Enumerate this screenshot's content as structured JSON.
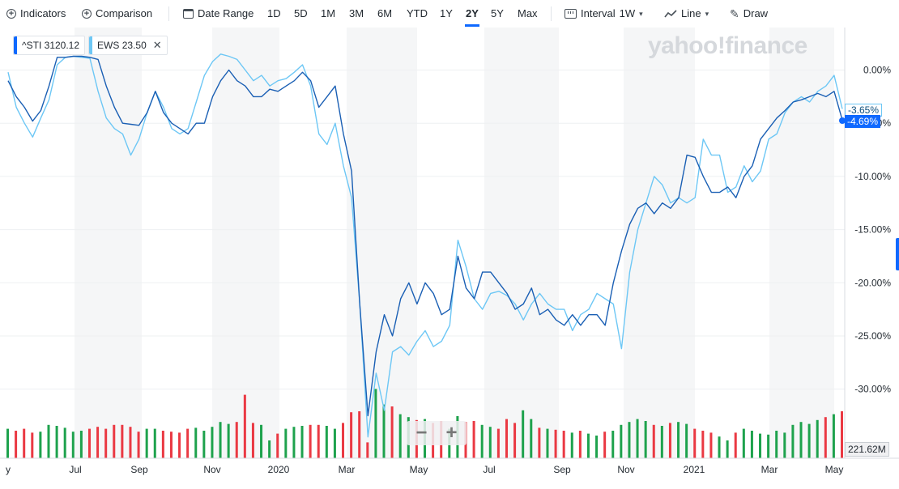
{
  "toolbar": {
    "indicators_label": "Indicators",
    "comparison_label": "Comparison",
    "date_range_label": "Date Range",
    "ranges": [
      "1D",
      "5D",
      "1M",
      "3M",
      "6M",
      "YTD",
      "1Y",
      "2Y",
      "5Y",
      "Max"
    ],
    "active_range": "2Y",
    "interval_label": "Interval",
    "interval_value": "1W",
    "chart_type_label": "Line",
    "draw_label": "Draw"
  },
  "legend": [
    {
      "symbol": "^STI",
      "value": "3120.12",
      "color": "#0f69ff"
    },
    {
      "symbol": "EWS",
      "value": "23.50",
      "color": "#6dc7f5"
    }
  ],
  "watermark": "yahoo!finance",
  "zoom": {
    "minus": "−",
    "plus": "+"
  },
  "tags": {
    "ews_pct": "-3.65%",
    "sti_pct": "-4.69%",
    "volume": "221.62M"
  },
  "chart_data": {
    "type": "line",
    "x_tick_labels": [
      "y",
      "Jul",
      "Sep",
      "Nov",
      "2020",
      "Mar",
      "May",
      "Jul",
      "Sep",
      "Nov",
      "2021",
      "Mar",
      "May"
    ],
    "y_tick_labels": [
      "0.00%",
      "-5.00%",
      "-10.00%",
      "-15.00%",
      "-20.00%",
      "-25.00%",
      "-30.00%"
    ],
    "ylim": [
      -36.5,
      4
    ],
    "series": [
      {
        "name": "^STI",
        "color": "#1a5fb4",
        "values": [
          -1,
          -2.5,
          -3.5,
          -4.8,
          -3.8,
          -1.5,
          1.2,
          1.2,
          1.3,
          1.3,
          1.2,
          1.0,
          -1.5,
          -3.5,
          -5,
          -5.1,
          -5.2,
          -4,
          -2,
          -4,
          -5,
          -5.5,
          -6,
          -5,
          -5,
          -2.5,
          -1,
          0,
          -1,
          -1.5,
          -2.5,
          -2.5,
          -1.8,
          -2,
          -1.5,
          -1,
          -0.2,
          -1,
          -3.5,
          -2.5,
          -1.5,
          -6,
          -9.5,
          -22,
          -32.5,
          -26.5,
          -23,
          -25,
          -21.5,
          -20,
          -22,
          -20,
          -21,
          -23,
          -22.5,
          -17.5,
          -20.5,
          -21.5,
          -19,
          -19,
          -20,
          -21,
          -22.5,
          -22,
          -20.5,
          -23,
          -22.5,
          -23.5,
          -24,
          -23,
          -24,
          -23,
          -23,
          -24,
          -20,
          -17,
          -14.5,
          -13,
          -12.5,
          -13.5,
          -12.5,
          -13,
          -12,
          -8,
          -8.2,
          -10,
          -11.5,
          -11.5,
          -11,
          -12,
          -10,
          -9,
          -6.5,
          -5.5,
          -4.5,
          -3.8,
          -3,
          -2.8,
          -2.5,
          -2.2,
          -2.5,
          -2,
          -4.69
        ]
      },
      {
        "name": "EWS",
        "color": "#6dc7f5",
        "values": [
          -0.2,
          -3.5,
          -5,
          -6.3,
          -4.5,
          -2.8,
          0.5,
          1.2,
          1.3,
          1.2,
          1.1,
          -2,
          -4.5,
          -5.5,
          -6,
          -8,
          -6.5,
          -4,
          -2,
          -3.5,
          -5.5,
          -6,
          -5.5,
          -3,
          -0.5,
          0.8,
          1.5,
          1.3,
          1.0,
          0,
          -1,
          -0.5,
          -1.5,
          -1,
          -0.8,
          -0.2,
          0.5,
          -1.5,
          -6,
          -7,
          -5,
          -9,
          -12,
          -22,
          -34.5,
          -28.5,
          -32,
          -26.5,
          -26,
          -26.8,
          -25.5,
          -24.5,
          -26,
          -25.5,
          -24,
          -16,
          -18.5,
          -21.5,
          -22.5,
          -21,
          -20.8,
          -21.2,
          -22,
          -23.5,
          -22,
          -21,
          -22,
          -22.5,
          -22.5,
          -24.5,
          -23,
          -22.5,
          -21,
          -21.5,
          -22,
          -26.2,
          -19,
          -15,
          -12.5,
          -10,
          -10.8,
          -12.5,
          -12,
          -12.5,
          -12,
          -6.5,
          -8,
          -8,
          -11.5,
          -11,
          -9,
          -10.5,
          -9.5,
          -6.5,
          -6,
          -4,
          -3,
          -2.5,
          -3,
          -2,
          -1.5,
          -0.5,
          -3.65
        ]
      }
    ]
  }
}
